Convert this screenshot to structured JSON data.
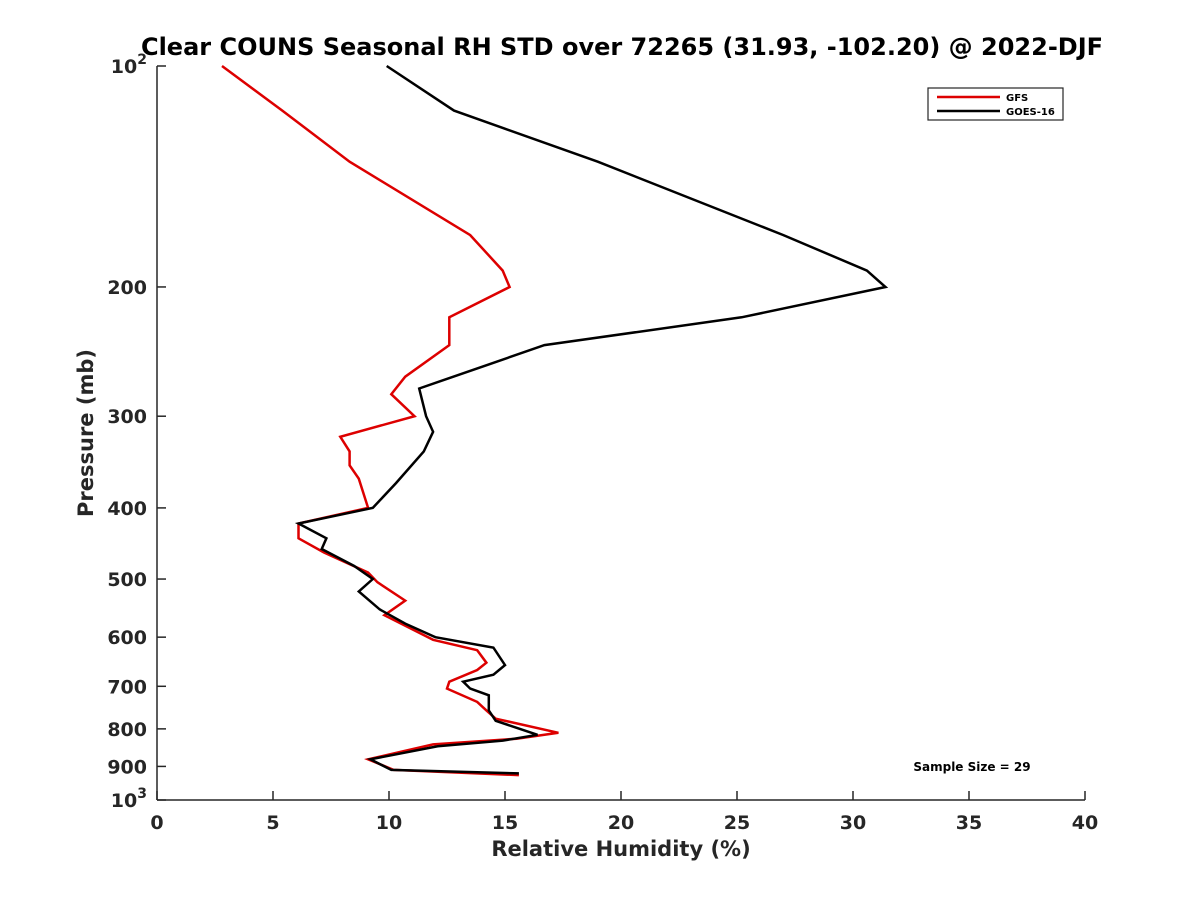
{
  "chart_data": {
    "type": "line",
    "title": "Clear COUNS Seasonal RH STD over 72265 (31.93, -102.20) @ 2022-DJF",
    "xlabel": "Relative Humidity (%)",
    "ylabel": "Pressure (mb)",
    "xlim": [
      0,
      40
    ],
    "ylim": [
      100,
      1000
    ],
    "yscale": "log",
    "y_reversed": true,
    "x_ticks": [
      0,
      5,
      10,
      15,
      20,
      25,
      30,
      35,
      40
    ],
    "x_tick_labels": [
      "0",
      "5",
      "10",
      "15",
      "20",
      "25",
      "30",
      "35",
      "40"
    ],
    "y_ticks": [
      {
        "value": 100,
        "base": "10",
        "exp": "2"
      },
      {
        "value": 200,
        "base": "200",
        "exp": ""
      },
      {
        "value": 300,
        "base": "300",
        "exp": ""
      },
      {
        "value": 400,
        "base": "400",
        "exp": ""
      },
      {
        "value": 500,
        "base": "500",
        "exp": ""
      },
      {
        "value": 600,
        "base": "600",
        "exp": ""
      },
      {
        "value": 700,
        "base": "700",
        "exp": ""
      },
      {
        "value": 800,
        "base": "800",
        "exp": ""
      },
      {
        "value": 900,
        "base": "900",
        "exp": ""
      },
      {
        "value": 1000,
        "base": "10",
        "exp": "3"
      }
    ],
    "grid": false,
    "legend_position": "top-right",
    "series": [
      {
        "name": "GFS",
        "color": "#dd0000",
        "points": [
          [
            2.8,
            100
          ],
          [
            5.4,
            115
          ],
          [
            8.3,
            135
          ],
          [
            13.5,
            170
          ],
          [
            14.9,
            190
          ],
          [
            15.2,
            200
          ],
          [
            12.6,
            220
          ],
          [
            12.6,
            240
          ],
          [
            10.7,
            265
          ],
          [
            10.1,
            280
          ],
          [
            11.1,
            300
          ],
          [
            7.9,
            320
          ],
          [
            8.3,
            335
          ],
          [
            8.3,
            350
          ],
          [
            8.7,
            365
          ],
          [
            9.1,
            400
          ],
          [
            6.1,
            420
          ],
          [
            6.1,
            440
          ],
          [
            7.2,
            460
          ],
          [
            9.1,
            490
          ],
          [
            9.5,
            505
          ],
          [
            10.7,
            535
          ],
          [
            9.8,
            560
          ],
          [
            11.9,
            605
          ],
          [
            13.8,
            625
          ],
          [
            14.2,
            650
          ],
          [
            13.8,
            665
          ],
          [
            12.6,
            690
          ],
          [
            12.5,
            705
          ],
          [
            13.8,
            735
          ],
          [
            14.2,
            755
          ],
          [
            14.6,
            775
          ],
          [
            17.3,
            810
          ],
          [
            15.5,
            825
          ],
          [
            11.9,
            840
          ],
          [
            10.5,
            860
          ],
          [
            9.1,
            880
          ],
          [
            10.2,
            910
          ],
          [
            15.6,
            925
          ]
        ]
      },
      {
        "name": "GOES-16",
        "color": "#000000",
        "points": [
          [
            9.9,
            100
          ],
          [
            12.8,
            115
          ],
          [
            19.0,
            135
          ],
          [
            27.0,
            170
          ],
          [
            30.6,
            190
          ],
          [
            31.4,
            200
          ],
          [
            25.2,
            220
          ],
          [
            16.7,
            240
          ],
          [
            14.3,
            255
          ],
          [
            11.3,
            275
          ],
          [
            11.6,
            300
          ],
          [
            11.9,
            315
          ],
          [
            11.5,
            335
          ],
          [
            10.3,
            370
          ],
          [
            9.3,
            400
          ],
          [
            6.1,
            420
          ],
          [
            7.3,
            440
          ],
          [
            7.1,
            455
          ],
          [
            8.5,
            480
          ],
          [
            9.3,
            500
          ],
          [
            8.7,
            520
          ],
          [
            9.6,
            550
          ],
          [
            10.7,
            575
          ],
          [
            12.0,
            600
          ],
          [
            14.5,
            620
          ],
          [
            15.0,
            655
          ],
          [
            14.5,
            675
          ],
          [
            13.2,
            690
          ],
          [
            13.5,
            705
          ],
          [
            14.3,
            720
          ],
          [
            14.3,
            755
          ],
          [
            14.6,
            780
          ],
          [
            16.4,
            815
          ],
          [
            14.9,
            830
          ],
          [
            12.1,
            845
          ],
          [
            9.2,
            880
          ],
          [
            10.1,
            910
          ],
          [
            15.6,
            920
          ]
        ]
      }
    ],
    "annotations": [
      {
        "text": "Sample Size = 29"
      }
    ]
  }
}
